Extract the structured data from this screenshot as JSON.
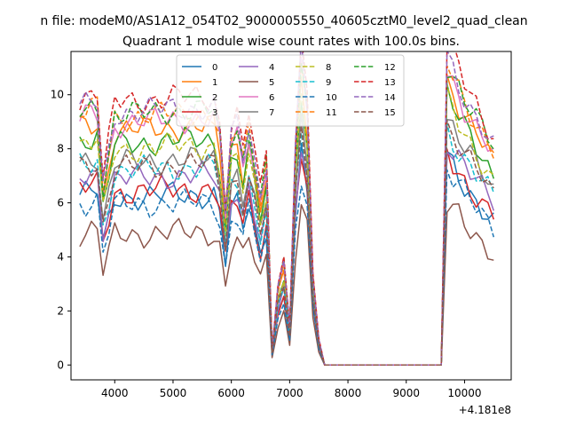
{
  "chart_data": {
    "type": "line",
    "suptitle": "n file: modeM0/AS1A12_054T02_9000005550_40605cztM0_level2_quad_clean",
    "title": "Quadrant 1 module wise count rates with 100.0s bins.",
    "xlabel": "",
    "ylabel": "",
    "x_offset_label": "+4.181e8",
    "xlim": [
      3250,
      10800
    ],
    "ylim": [
      -0.55,
      11.6
    ],
    "xticks": [
      4000,
      5000,
      6000,
      7000,
      8000,
      9000,
      10000
    ],
    "yticks": [
      0,
      2,
      4,
      6,
      8,
      10
    ],
    "grid": false,
    "legend": {
      "placement": "top-center",
      "ncol": 4
    },
    "series": [
      {
        "name": "0",
        "color": "#1f77b4",
        "dash": "solid"
      },
      {
        "name": "1",
        "color": "#ff7f0e",
        "dash": "solid"
      },
      {
        "name": "2",
        "color": "#2ca02c",
        "dash": "solid"
      },
      {
        "name": "3",
        "color": "#d62728",
        "dash": "solid"
      },
      {
        "name": "4",
        "color": "#9467bd",
        "dash": "solid"
      },
      {
        "name": "5",
        "color": "#8c564b",
        "dash": "solid"
      },
      {
        "name": "6",
        "color": "#e377c2",
        "dash": "solid"
      },
      {
        "name": "7",
        "color": "#7f7f7f",
        "dash": "solid"
      },
      {
        "name": "8",
        "color": "#bcbd22",
        "dash": "dashed"
      },
      {
        "name": "9",
        "color": "#17becf",
        "dash": "dashed"
      },
      {
        "name": "10",
        "color": "#1f77b4",
        "dash": "dashed"
      },
      {
        "name": "11",
        "color": "#ff7f0e",
        "dash": "dashed"
      },
      {
        "name": "12",
        "color": "#2ca02c",
        "dash": "dashed"
      },
      {
        "name": "13",
        "color": "#d62728",
        "dash": "dashed"
      },
      {
        "name": "14",
        "color": "#9467bd",
        "dash": "dashed"
      },
      {
        "name": "15",
        "color": "#8c564b",
        "dash": "dashed"
      }
    ],
    "profile_x": [
      3400,
      3700,
      3800,
      4000,
      5000,
      5700,
      5800,
      5900,
      6000,
      6050,
      6200,
      6300,
      6500,
      6600,
      6700,
      6800,
      6850,
      6900,
      7000,
      7100,
      7200,
      7300,
      7400,
      7500,
      7600,
      7700,
      8000,
      9000,
      9500,
      9600,
      9700,
      10000,
      10500
    ],
    "profile_y": [
      1.0,
      1.02,
      0.7,
      0.98,
      1.0,
      1.0,
      0.9,
      0.6,
      0.9,
      1.0,
      0.8,
      0.95,
      0.65,
      0.8,
      0.06,
      0.3,
      0.8,
      0.4,
      0.15,
      0.85,
      1.2,
      1.0,
      0.35,
      0.1,
      0.0,
      0.0,
      0.0,
      0.0,
      0.0,
      0.0,
      1.2,
      1.05,
      0.85
    ],
    "series_levels": [
      6.3,
      8.8,
      8.3,
      6.5,
      7.0,
      4.9,
      9.1,
      7.6,
      8.1,
      7.3,
      6.0,
      9.3,
      9.4,
      9.9,
      9.5,
      7.4
    ]
  }
}
